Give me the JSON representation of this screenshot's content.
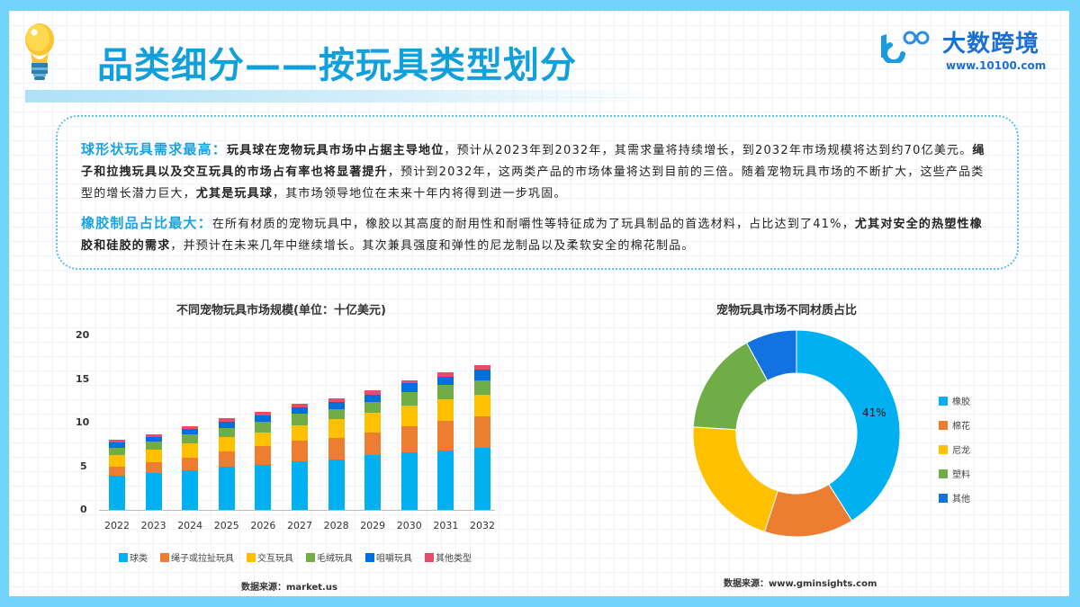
{
  "header": {
    "title": "品类细分——按玩具类型划分",
    "icon": "lightbulb-icon"
  },
  "logo": {
    "mark": "10100-logo",
    "name": "大数跨境",
    "url": "www.10100.com"
  },
  "summary": {
    "paragraphs": [
      {
        "heading": "球形状玩具需求最高：",
        "bold_lead": "玩具球在宠物玩具市场中占据主导地位",
        "text1": "，预计从2023年到2032年，其需求量将持续增长，到2032年市场规模将达到约70亿美元。",
        "bold_mid": "绳子和拉拽玩具以及交互玩具的市场占有率也将显著提升",
        "text2": "，预计到2032年，这两类产品的市场体量将达到目前的三倍。随着宠物玩具市场的不断扩大，这些产品类型的增长潜力巨大，",
        "bold_end": "尤其是玩具球",
        "text3": "，其市场领导地位在未来十年内将得到进一步巩固。"
      },
      {
        "heading": "橡胶制品占比最大：",
        "text1": "在所有材质的宠物玩具中，橡胶以其高度的耐用性和耐嚼性等特征成为了玩具制品的首选材料，占比达到了41%，",
        "bold_mid": "尤其对安全的热塑性橡胶和硅胶的需求",
        "text2": "，并预计在未来几年中继续增长。其次兼具强度和弹性的尼龙制品以及柔软安全的棉花制品。"
      }
    ]
  },
  "bar_chart": {
    "title": "不同宠物玩具市场规模(单位：十亿美元)",
    "source": "数据来源：market.us"
  },
  "donut_chart": {
    "title": "宠物玩具市场不同材质占比",
    "label": "41%",
    "source": "数据来源：www.gminsights.com"
  },
  "chart_data": [
    {
      "type": "bar",
      "stacked": true,
      "title": "不同宠物玩具市场规模(单位：十亿美元)",
      "xlabel": "",
      "ylabel": "",
      "ylim": [
        0,
        20
      ],
      "yticks": [
        0,
        5,
        10,
        15,
        20
      ],
      "grid": false,
      "legend_position": "bottom",
      "categories": [
        "2022",
        "2023",
        "2024",
        "2025",
        "2026",
        "2027",
        "2028",
        "2029",
        "2030",
        "2031",
        "2032"
      ],
      "series": [
        {
          "name": "球类",
          "color": "#00b0f0",
          "values": [
            3.9,
            4.2,
            4.5,
            4.9,
            5.2,
            5.6,
            5.8,
            6.3,
            6.6,
            6.8,
            7.1
          ]
        },
        {
          "name": "绳子或拉扯玩具",
          "color": "#ed7d31",
          "values": [
            1.1,
            1.3,
            1.5,
            1.8,
            2.1,
            2.3,
            2.5,
            2.6,
            3.0,
            3.4,
            3.6
          ]
        },
        {
          "name": "交互玩具",
          "color": "#ffc000",
          "values": [
            1.3,
            1.4,
            1.6,
            1.7,
            1.6,
            1.8,
            2.1,
            2.2,
            2.4,
            2.5,
            2.5
          ]
        },
        {
          "name": "毛绒玩具",
          "color": "#70ad47",
          "values": [
            0.8,
            0.9,
            1.1,
            1.0,
            1.2,
            1.3,
            1.2,
            1.3,
            1.5,
            1.6,
            1.7
          ]
        },
        {
          "name": "咀嚼玩具",
          "color": "#0070e0",
          "values": [
            0.6,
            0.6,
            0.6,
            0.7,
            0.7,
            0.8,
            0.8,
            0.8,
            1.0,
            1.0,
            1.2
          ]
        },
        {
          "name": "其他类型",
          "color": "#e84c6b",
          "values": [
            0.3,
            0.3,
            0.3,
            0.4,
            0.4,
            0.4,
            0.4,
            0.5,
            0.4,
            0.5,
            0.5
          ]
        }
      ],
      "source": "数据来源：market.us"
    },
    {
      "type": "pie",
      "donut": true,
      "title": "宠物玩具市场不同材质占比",
      "legend_position": "right",
      "categories": [
        "橡胶",
        "棉花",
        "尼龙",
        "塑料",
        "其他"
      ],
      "values": [
        41,
        14,
        21,
        16,
        8
      ],
      "colors": [
        "#00b0f0",
        "#ed7d31",
        "#ffc000",
        "#70ad47",
        "#1273e0"
      ],
      "labels_shown": {
        "橡胶": "41%"
      },
      "source": "数据来源：www.gminsights.com"
    }
  ]
}
